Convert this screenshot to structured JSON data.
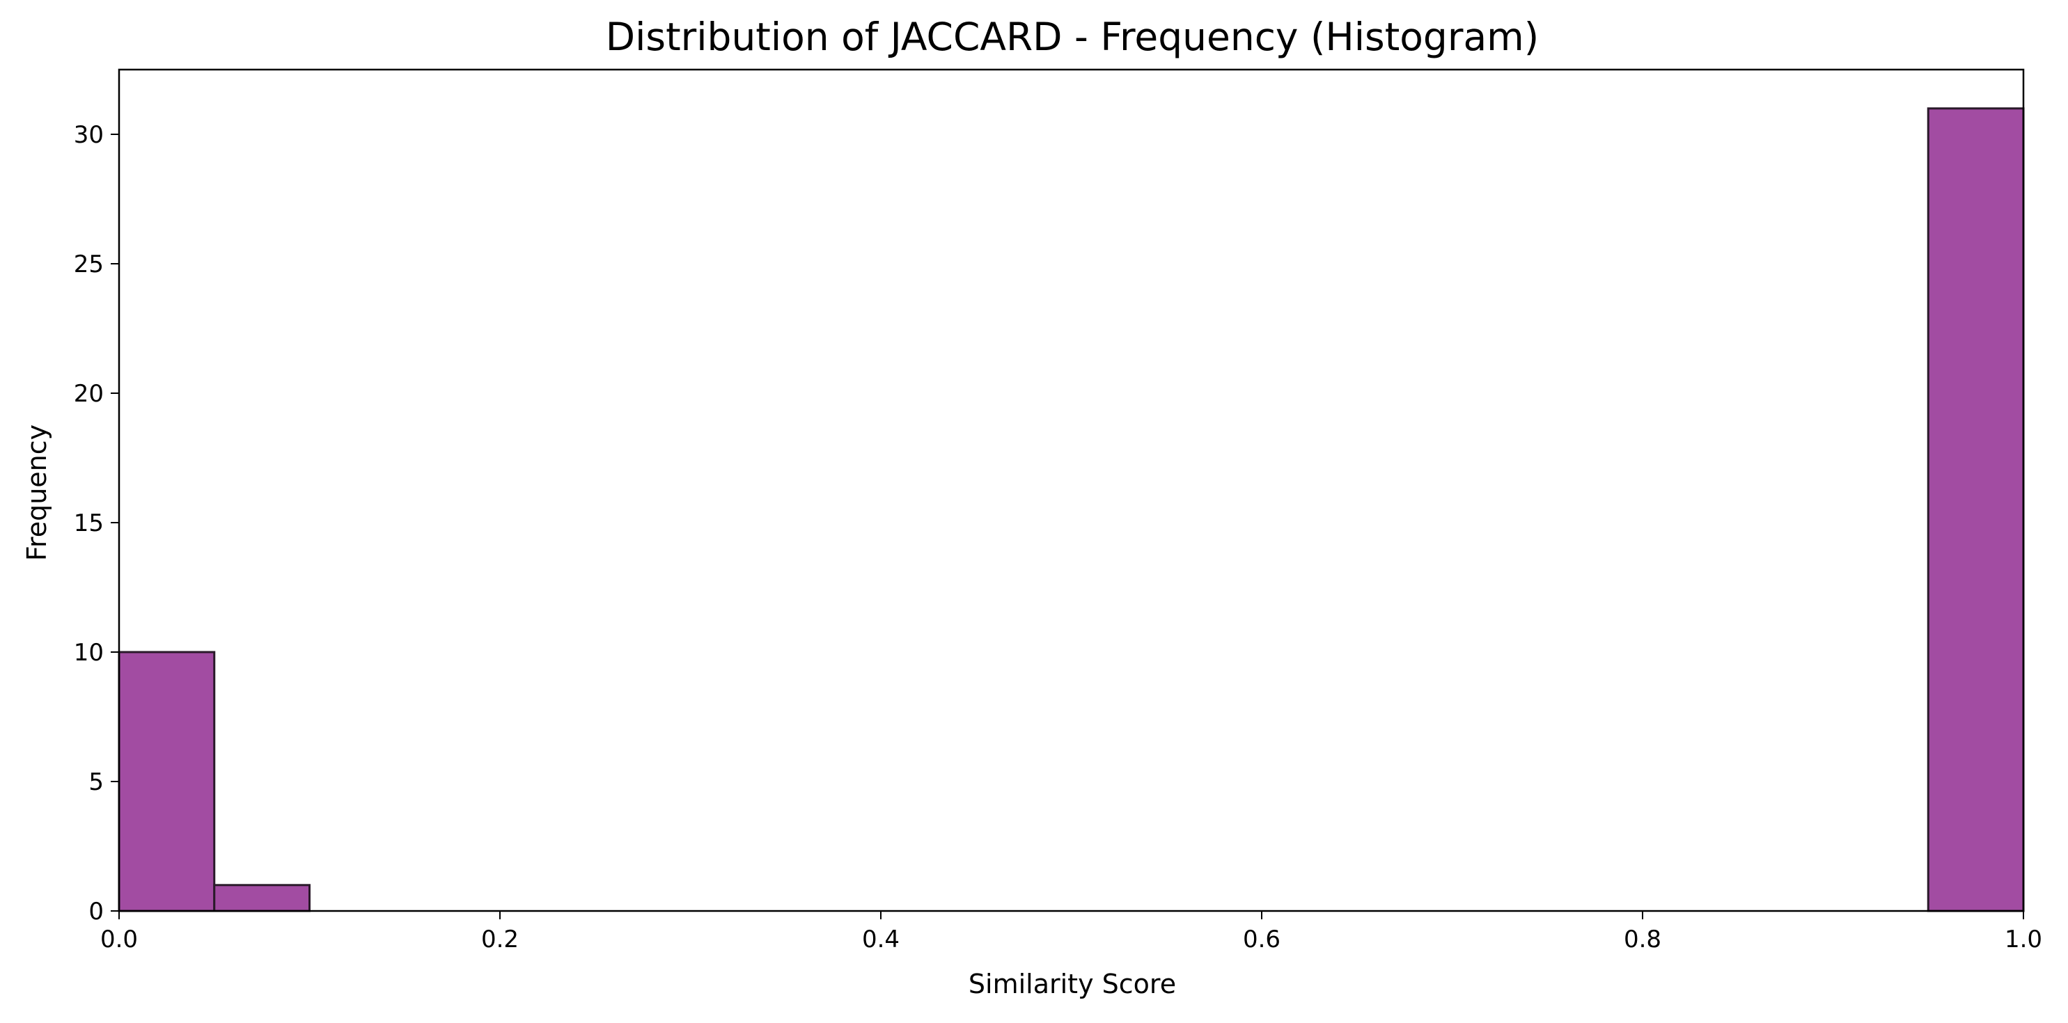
{
  "chart_data": {
    "type": "bar",
    "title": "Distribution of JACCARD - Frequency (Histogram)",
    "xlabel": "Similarity Score",
    "ylabel": "Frequency",
    "xlim": [
      0,
      1
    ],
    "ylim": [
      0,
      32.5
    ],
    "bin_width": 0.05,
    "bins": [
      {
        "start": 0.0,
        "end": 0.05,
        "value": 10
      },
      {
        "start": 0.05,
        "end": 0.1,
        "value": 1
      },
      {
        "start": 0.95,
        "end": 1.0,
        "value": 31
      }
    ],
    "x_ticks": [
      0.0,
      0.2,
      0.4,
      0.6,
      0.8,
      1.0
    ],
    "x_tick_labels": [
      "0.0",
      "0.2",
      "0.4",
      "0.6",
      "0.8",
      "1.0"
    ],
    "y_ticks": [
      0,
      5,
      10,
      15,
      20,
      25,
      30
    ],
    "y_tick_labels": [
      "0",
      "5",
      "10",
      "15",
      "20",
      "25",
      "30"
    ],
    "grid": false,
    "legend": "none",
    "bar_color": "#a24ca2",
    "bar_edge_color": "#2a1a2a"
  }
}
